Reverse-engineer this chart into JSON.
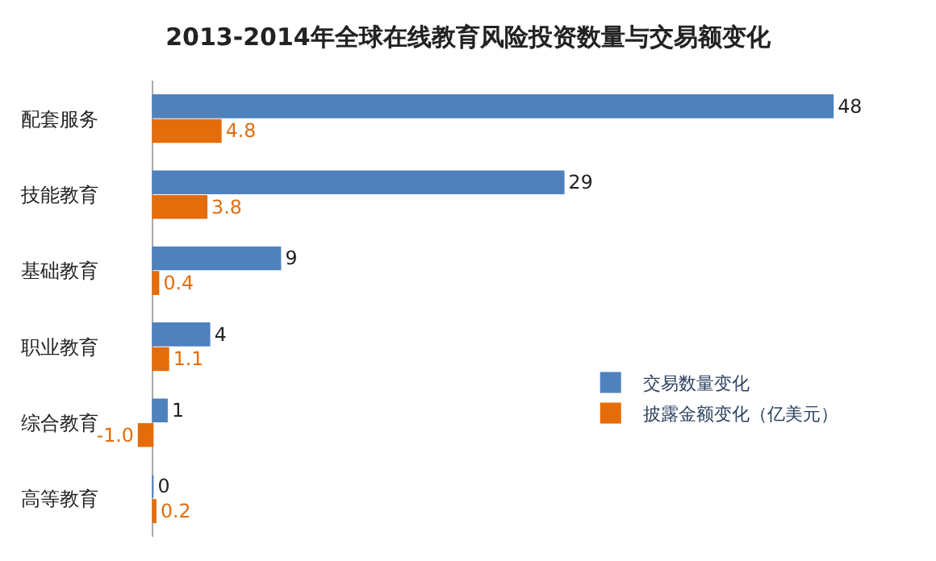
{
  "chart_data": {
    "type": "bar",
    "orientation": "horizontal",
    "title": "2013-2014年全球在线教育风险投资数量与交易额变化",
    "categories": [
      "配套服务",
      "技能教育",
      "基础教育",
      "职业教育",
      "综合教育",
      "高等教育"
    ],
    "series": [
      {
        "name": "交易数量变化",
        "color": "#4f81bd",
        "values": [
          48,
          29,
          9,
          4,
          1,
          0
        ],
        "value_labels": [
          "48",
          "29",
          "9",
          "4",
          "1",
          "0"
        ]
      },
      {
        "name": "披露金额变化（亿美元）",
        "color": "#e46c0a",
        "values": [
          4.8,
          3.8,
          0.4,
          1.1,
          -1.0,
          0.2
        ],
        "value_labels": [
          "4.8",
          "3.8",
          "0.4",
          "1.1",
          "-1.0",
          "0.2"
        ]
      }
    ],
    "legend": "bottom right"
  }
}
